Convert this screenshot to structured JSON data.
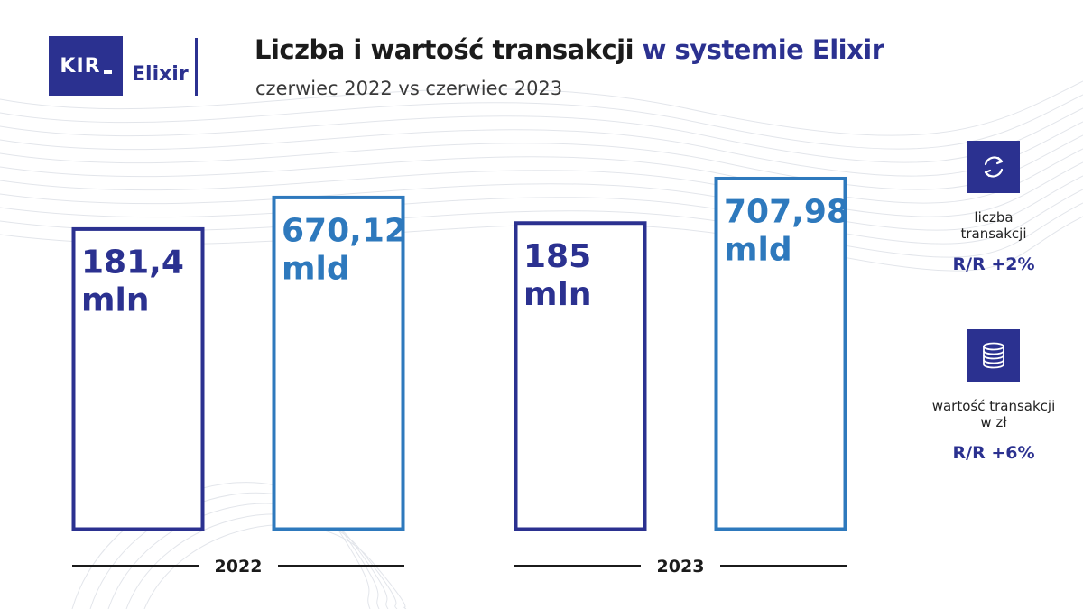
{
  "colors": {
    "dark": "#2b3190",
    "light": "#2e79bd"
  },
  "logo": {
    "kir": "KIR",
    "elixir": "Elixir"
  },
  "header": {
    "title_main": "Liczba i wartość transakcji",
    "title_accent": "w systemie Elixir",
    "subtitle": "czerwiec 2022 vs czerwiec 2023"
  },
  "chart_data": {
    "type": "bar",
    "categories": [
      "2022",
      "2023"
    ],
    "series": [
      {
        "name": "liczba transakcji",
        "values": [
          181.4,
          185
        ],
        "labels": [
          "181,4",
          "185"
        ],
        "unit_label": "mln",
        "color": "#2b3190"
      },
      {
        "name": "wartość transakcji w zł",
        "values": [
          670.12,
          707.98
        ],
        "labels": [
          "670,12",
          "707,98"
        ],
        "unit_label": "mld",
        "color": "#2e79bd"
      }
    ],
    "title": "Liczba i wartość transakcji w systemie Elixir",
    "subtitle": "czerwiec 2022 vs czerwiec 2023",
    "xlabel": "",
    "ylabel": ""
  },
  "legend": [
    {
      "icon": "exchange-arrows-icon",
      "label_line1": "liczba",
      "label_line2": "transakcji",
      "change": "R/R +2%"
    },
    {
      "icon": "coins-stack-icon",
      "label_line1": "wartość transakcji",
      "label_line2": "w zł",
      "change": "R/R +6%"
    }
  ]
}
